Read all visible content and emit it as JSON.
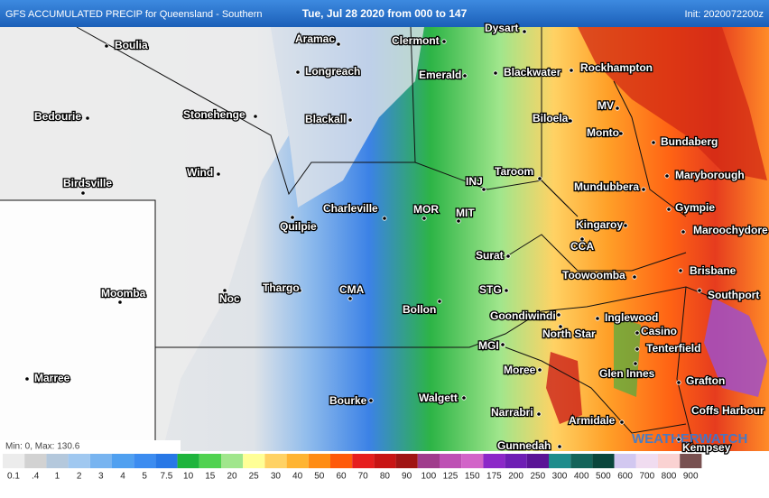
{
  "header": {
    "title": "GFS ACCUMULATED PRECIP for Queensland - Southern",
    "period": "Tue, Jul 28 2020 from 000 to 147",
    "init": "Init: 2020072200z"
  },
  "towns": [
    "Boulia",
    "Aramac",
    "Clermont",
    "Dysart",
    "Longreach",
    "Blackwater",
    "Rockhampton",
    "Emerald",
    "Bedourie",
    "Stonehenge",
    "Blackall",
    "Biloela",
    "MV",
    "Monto",
    "Bundaberg",
    "Wind",
    "Taroom",
    "Maryborough",
    "Birdsville",
    "INJ",
    "Mundubbera",
    "Charleville",
    "MOR",
    "MIT",
    "Gympie",
    "Quilpie",
    "Kingaroy",
    "Maroochydore",
    "CCA",
    "Surat",
    "Brisbane",
    "Toowoomba",
    "Moomba",
    "Thargo",
    "Noc",
    "CMA",
    "STG",
    "Southport",
    "Bollon",
    "Goondiwindi",
    "Inglewood",
    "Casino",
    "North Star",
    "Tenterfield",
    "MGI",
    "Moree",
    "Marree",
    "Glen Innes",
    "Grafton",
    "Bourke",
    "Walgett",
    "Coffs Harbour",
    "Narrabri",
    "Armidale",
    "Gunnedah",
    "Kempsey"
  ],
  "stats": "Min: 0, Max: 130.6",
  "logo": "WEATHERWATCH",
  "legend": {
    "labels": [
      "0.1",
      ".4",
      "1",
      "2",
      "3",
      "4",
      "5",
      "7.5",
      "10",
      "15",
      "20",
      "25",
      "30",
      "40",
      "50",
      "60",
      "70",
      "80",
      "90",
      "100",
      "125",
      "150",
      "175",
      "200",
      "250",
      "300",
      "400",
      "500",
      "600",
      "700",
      "800",
      "900"
    ],
    "colors": [
      "#ececec",
      "#d2d2d2",
      "#b4c8dc",
      "#a0c8f0",
      "#78b4f0",
      "#50a0f0",
      "#3c8cf0",
      "#2878e6",
      "#1eb43c",
      "#50d250",
      "#a0e68c",
      "#ffff96",
      "#ffd264",
      "#ffb432",
      "#ff8c14",
      "#ff5a0a",
      "#e61e1e",
      "#c81414",
      "#a01414",
      "#a03c8c",
      "#be50b4",
      "#d264c8",
      "#8c28c8",
      "#6e1eb4",
      "#5a1496",
      "#1e8c8c",
      "#14645a",
      "#0a463c",
      "#d2c8f0",
      "#f0dcf0",
      "#fad2d2",
      "#785050"
    ]
  }
}
